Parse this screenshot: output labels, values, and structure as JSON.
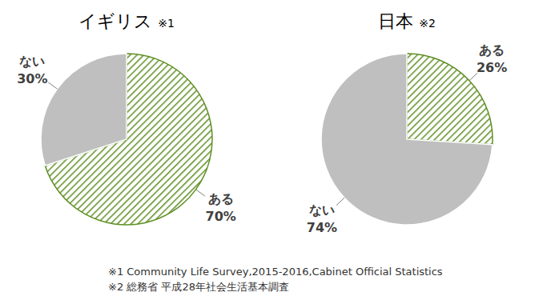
{
  "chart_data": [
    {
      "type": "pie",
      "title": "イギリス ※1",
      "source": "※1 Community Life Survey,2015-2016,Cabinet Official Statistics",
      "categories": [
        "ある",
        "ない"
      ],
      "values": [
        70,
        30
      ],
      "value_labels": [
        "70%",
        "30%"
      ],
      "colors": [
        "#5f8f24",
        "#bfbfbf"
      ],
      "data_labels": true
    },
    {
      "type": "pie",
      "title": "日本 ※2",
      "source": "※2 総務省 平成28年社会生活基本調査",
      "categories": [
        "ある",
        "ない"
      ],
      "values": [
        26,
        74
      ],
      "value_labels": [
        "26%",
        "74%"
      ],
      "colors": [
        "#5f8f24",
        "#bfbfbf"
      ],
      "data_labels": true
    }
  ]
}
